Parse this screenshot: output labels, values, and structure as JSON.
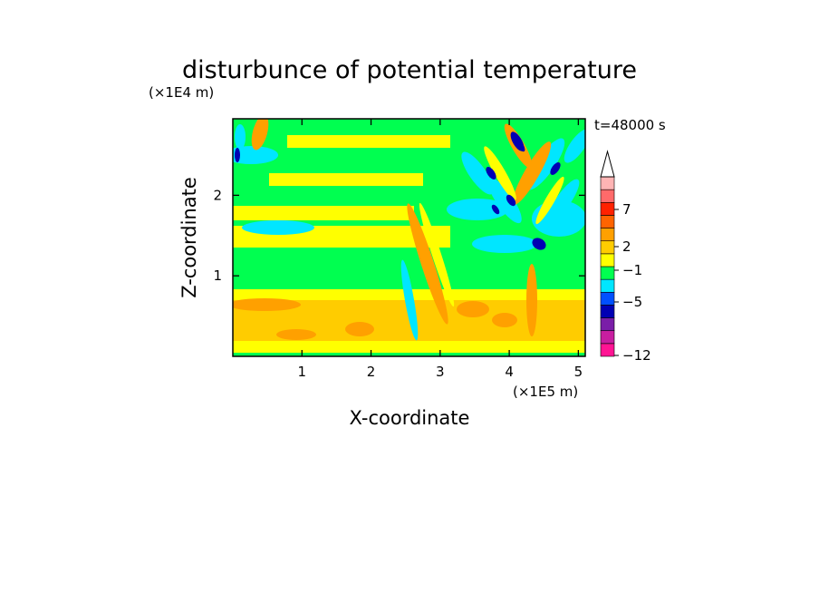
{
  "chart_data": {
    "type": "heatmap",
    "title": "disturbunce of potential temperature",
    "time_label": "t=48000 s",
    "xlabel": "X-coordinate",
    "ylabel": "Z-coordinate",
    "x_unit": "(×1E5 m)",
    "y_unit": "(×1E4 m)",
    "xlim": [
      0,
      5.1
    ],
    "ylim": [
      0,
      2.95
    ],
    "x_ticks": [
      "1",
      "2",
      "3",
      "4",
      "5"
    ],
    "y_ticks": [
      "1",
      "2"
    ],
    "x_tick_values": [
      1,
      2,
      3,
      4,
      5
    ],
    "y_tick_values": [
      1,
      2
    ],
    "colorbar": {
      "labels": [
        "7",
        "2",
        "−1",
        "−5",
        "−12"
      ],
      "label_values": [
        7,
        2,
        -1,
        -5,
        -12
      ],
      "colors": [
        "#ff1493",
        "#c81ea0",
        "#7a1ea8",
        "#0000b4",
        "#0050ff",
        "#00e6ff",
        "#00ff50",
        "#ffff00",
        "#ffcc00",
        "#ffa000",
        "#ff6400",
        "#ff2200",
        "#ff6a6a",
        "#ffb4b4"
      ],
      "overflow_arrow_color": "#ffffff"
    },
    "field_description_levels": {
      "background": "#00ff50",
      "warm_band_low": "#ffcc00",
      "warm_band_mid": "#ffff00",
      "cold_core": "#0000b4",
      "cool_wave": "#00e6ff",
      "warm_wave": "#ffa000"
    }
  }
}
